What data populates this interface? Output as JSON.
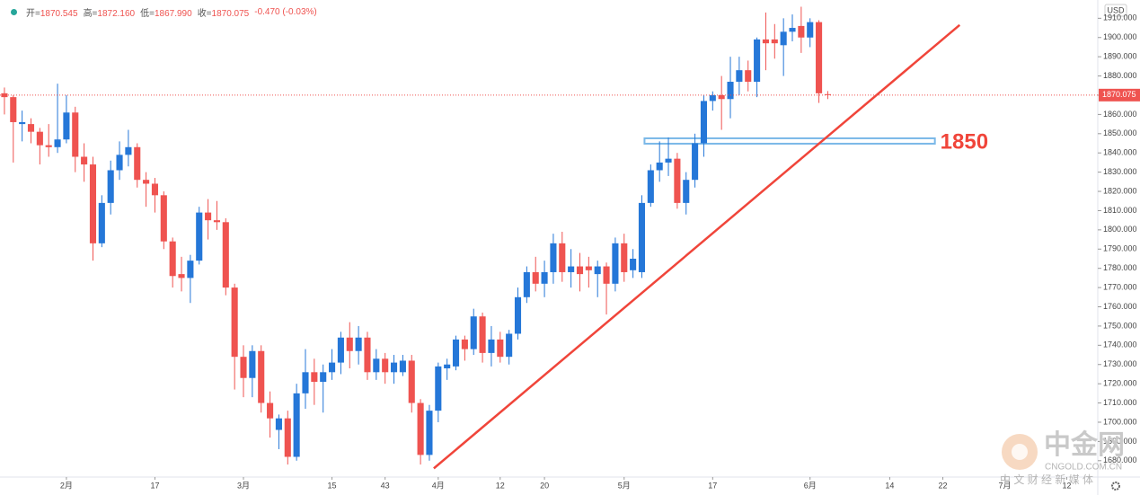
{
  "chart_data": {
    "type": "candlestick",
    "header": {
      "items": [
        {
          "label": "开=",
          "text": "1870.545"
        },
        {
          "label": "高=",
          "text": "1872.160"
        },
        {
          "label": "低=",
          "text": "1867.990"
        },
        {
          "label": "收=",
          "text": "1870.075"
        }
      ],
      "change": "-0.470 (-0.03%)"
    },
    "currency": "USD",
    "x": [
      0,
      1,
      2,
      3,
      4,
      5,
      6,
      7,
      8,
      9,
      10,
      11,
      12,
      13,
      14,
      15,
      16,
      17,
      18,
      19,
      20,
      21,
      22,
      23,
      24,
      25,
      26,
      27,
      28,
      29,
      30,
      31,
      32,
      33,
      34,
      35,
      36,
      37,
      38,
      39,
      40,
      41,
      42,
      43,
      44,
      45,
      46,
      47,
      48,
      49,
      50,
      51,
      52,
      53,
      54,
      55,
      56,
      57,
      58,
      59,
      60,
      61,
      62,
      63,
      64,
      65,
      66,
      67,
      68,
      69,
      70,
      71,
      72,
      73,
      74,
      75,
      76,
      77,
      78,
      79,
      80,
      81,
      82,
      83,
      84,
      85,
      86,
      87,
      88,
      89,
      90,
      91,
      92,
      93
    ],
    "open": [
      1871,
      1869,
      1855,
      1855,
      1851,
      1844,
      1843,
      1847,
      1861,
      1838,
      1834,
      1793,
      1814,
      1831,
      1839,
      1843,
      1826,
      1824,
      1818,
      1794,
      1777,
      1775,
      1784,
      1809,
      1805,
      1804,
      1770,
      1734,
      1723,
      1737,
      1710,
      1696,
      1702,
      1682,
      1715,
      1726,
      1721,
      1726,
      1731,
      1744,
      1737,
      1744,
      1726,
      1733,
      1726,
      1726,
      1732,
      1710,
      1683,
      1706,
      1728,
      1729,
      1743,
      1738,
      1755,
      1736,
      1743,
      1734,
      1746,
      1765,
      1778,
      1772,
      1778,
      1793,
      1778,
      1781,
      1781,
      1777,
      1781,
      1772,
      1793,
      1779,
      1778,
      1814,
      1831,
      1835,
      1837,
      1814,
      1826,
      1845,
      1867,
      1870,
      1868,
      1877,
      1883,
      1877,
      1899,
      1899,
      1896,
      1903,
      1906,
      1900,
      1908,
      1870.545
    ],
    "high": [
      1874,
      1870,
      1862,
      1858,
      1853,
      1855,
      1876,
      1870,
      1864,
      1845,
      1838,
      1818,
      1836,
      1846,
      1852,
      1845,
      1830,
      1827,
      1820,
      1796,
      1786,
      1787,
      1812,
      1816,
      1815,
      1806,
      1772,
      1740,
      1740,
      1740,
      1716,
      1704,
      1706,
      1720,
      1738,
      1733,
      1730,
      1738,
      1747,
      1752,
      1750,
      1747,
      1738,
      1736,
      1735,
      1735,
      1735,
      1712,
      1709,
      1731,
      1733,
      1745,
      1745,
      1759,
      1757,
      1750,
      1747,
      1748,
      1770,
      1781,
      1786,
      1784,
      1798,
      1799,
      1790,
      1788,
      1786,
      1784,
      1783,
      1796,
      1798,
      1790,
      1818,
      1834,
      1846,
      1848,
      1840,
      1830,
      1850,
      1870,
      1872,
      1880,
      1890,
      1890,
      1888,
      1900,
      1913,
      1907,
      1910,
      1912,
      1916,
      1910,
      1909,
      1872.16
    ],
    "low": [
      1860,
      1835,
      1846,
      1845,
      1834,
      1838,
      1840,
      1845,
      1830,
      1825,
      1784,
      1791,
      1808,
      1826,
      1833,
      1822,
      1812,
      1809,
      1790,
      1770,
      1768,
      1762,
      1782,
      1795,
      1800,
      1766,
      1717,
      1713,
      1713,
      1705,
      1692,
      1686,
      1678,
      1680,
      1707,
      1709,
      1705,
      1722,
      1725,
      1728,
      1730,
      1722,
      1722,
      1720,
      1720,
      1724,
      1705,
      1678,
      1680,
      1700,
      1722,
      1727,
      1732,
      1735,
      1731,
      1729,
      1731,
      1730,
      1743,
      1762,
      1768,
      1765,
      1772,
      1773,
      1770,
      1768,
      1770,
      1765,
      1756,
      1768,
      1773,
      1775,
      1775,
      1812,
      1825,
      1828,
      1811,
      1808,
      1822,
      1838,
      1862,
      1852,
      1858,
      1870,
      1872,
      1869,
      1883,
      1889,
      1880,
      1898,
      1892,
      1895,
      1866,
      1867.99
    ],
    "close": [
      1869,
      1856,
      1856,
      1851,
      1844,
      1843,
      1847,
      1861,
      1838,
      1834,
      1793,
      1814,
      1831,
      1839,
      1843,
      1826,
      1824,
      1818,
      1794,
      1776,
      1775,
      1784,
      1809,
      1805,
      1804,
      1770,
      1734,
      1723,
      1737,
      1710,
      1702,
      1702,
      1682,
      1715,
      1726,
      1721,
      1726,
      1731,
      1744,
      1737,
      1744,
      1726,
      1733,
      1726,
      1731,
      1732,
      1710,
      1683,
      1706,
      1729,
      1730,
      1743,
      1738,
      1755,
      1736,
      1743,
      1734,
      1746,
      1765,
      1778,
      1772,
      1778,
      1793,
      1778,
      1781,
      1777,
      1779,
      1781,
      1772,
      1793,
      1778,
      1785,
      1814,
      1831,
      1835,
      1837,
      1814,
      1826,
      1845,
      1867,
      1870,
      1868,
      1877,
      1883,
      1877,
      1899,
      1897,
      1897,
      1903,
      1905,
      1900,
      1908,
      1871,
      1870.075
    ],
    "up_color": "#2577d8",
    "down_color": "#ef5350",
    "xlim": [
      -0.5,
      123.5
    ],
    "ylim": [
      1671.5,
      1919.5
    ],
    "xticks": [
      {
        "value": 7,
        "label": "2月"
      },
      17,
      {
        "value": 27,
        "label": "3月"
      },
      {
        "value": 37,
        "label": "15"
      },
      43,
      {
        "value": 49,
        "label": "4月"
      },
      {
        "value": 56,
        "label": "12"
      },
      {
        "value": 61,
        "label": "20"
      },
      {
        "value": 70,
        "label": "5月"
      },
      {
        "value": 80,
        "label": "17"
      },
      {
        "value": 91,
        "label": "6月"
      },
      {
        "value": 100,
        "label": "14"
      },
      {
        "value": 106,
        "label": "22"
      },
      {
        "value": 113,
        "label": "7月"
      },
      {
        "value": 120,
        "label": "12"
      }
    ],
    "yticks": [
      {
        "value": 1680,
        "label": "1680.000"
      },
      {
        "value": 1690,
        "label": "1690.000"
      },
      {
        "value": 1700,
        "label": "1700.000"
      },
      {
        "value": 1710,
        "label": "1710.000"
      },
      {
        "value": 1720,
        "label": "1720.000"
      },
      {
        "value": 1730,
        "label": "1730.000"
      },
      {
        "value": 1740,
        "label": "1740.000"
      },
      {
        "value": 1750,
        "label": "1750.000"
      },
      {
        "value": 1760,
        "label": "1760.000"
      },
      {
        "value": 1770,
        "label": "1770.000"
      },
      {
        "value": 1780,
        "label": "1780.000"
      },
      {
        "value": 1790,
        "label": "1790.000"
      },
      {
        "value": 1800,
        "label": "1800.000"
      },
      {
        "value": 1810,
        "label": "1810.000"
      },
      {
        "value": 1820,
        "label": "1820.000"
      },
      {
        "value": 1830,
        "label": "1830.000"
      },
      {
        "value": 1840,
        "label": "1840.000"
      },
      {
        "value": 1850,
        "label": "1850.000"
      },
      {
        "value": 1860,
        "label": "1860.000"
      },
      {
        "value": 1870,
        "label": "1870.000"
      },
      {
        "value": 1880,
        "label": "1880.000"
      },
      {
        "value": 1890,
        "label": "1890.000"
      },
      {
        "value": 1900,
        "label": "1900.000"
      },
      {
        "value": 1910,
        "label": "1910.000"
      }
    ],
    "grid": false,
    "trendline": {
      "x": [
        48.5,
        107.9
      ],
      "y": [
        1676,
        1906.5
      ],
      "color": "#f0453a"
    },
    "zone": {
      "x": [
        72.3,
        105.1
      ],
      "y": [
        1844.8,
        1847.6
      ],
      "color": "#7ab8e8",
      "label": "1850",
      "label_color": "#f0453a"
    },
    "watermark": {
      "name": "中金网",
      "site": "CNGOLD.COM.CN",
      "slogan": "中 文 财 经 新 媒 体"
    }
  }
}
